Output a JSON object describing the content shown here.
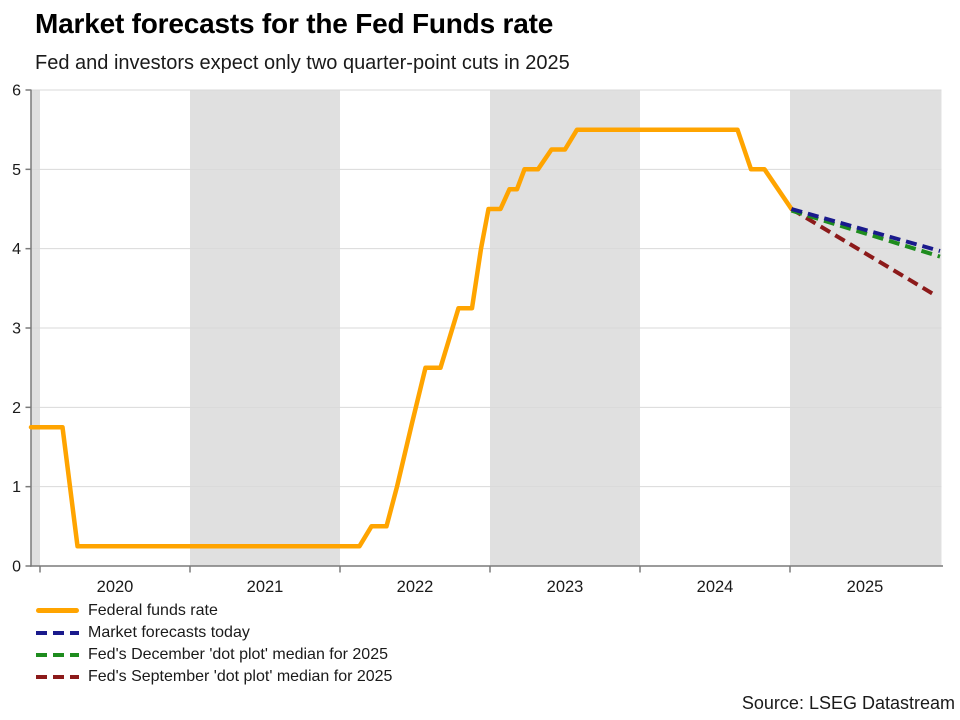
{
  "chart_data": {
    "type": "line",
    "title": "Market forecasts for the Fed Funds rate",
    "subtitle": "Fed and investors expect only two quarter-point cuts in 2025",
    "x_axis": {
      "ticks": [
        2020,
        2021,
        2022,
        2023,
        2024,
        2025
      ],
      "range": [
        2019.94,
        2026.01
      ]
    },
    "y_axis": {
      "ticks": [
        0,
        1,
        2,
        3,
        4,
        5,
        6
      ],
      "range": [
        0,
        6
      ]
    },
    "grid": true,
    "legend_position": "bottom-left",
    "shaded_year_bands": [
      [
        2019.94,
        2020
      ],
      [
        2021,
        2022
      ],
      [
        2023,
        2024
      ],
      [
        2025,
        2026.01
      ]
    ],
    "series": [
      {
        "name": "Federal funds rate",
        "color": "#FFA400",
        "style": "solid",
        "points": [
          [
            2019.94,
            1.75
          ],
          [
            2020.15,
            1.75
          ],
          [
            2020.25,
            0.25
          ],
          [
            2022.13,
            0.25
          ],
          [
            2022.21,
            0.5
          ],
          [
            2022.31,
            0.5
          ],
          [
            2022.38,
            1.0
          ],
          [
            2022.48,
            1.8
          ],
          [
            2022.57,
            2.5
          ],
          [
            2022.67,
            2.5
          ],
          [
            2022.79,
            3.25
          ],
          [
            2022.88,
            3.25
          ],
          [
            2022.94,
            4.0
          ],
          [
            2022.99,
            4.5
          ],
          [
            2023.07,
            4.5
          ],
          [
            2023.13,
            4.75
          ],
          [
            2023.18,
            4.75
          ],
          [
            2023.23,
            5.0
          ],
          [
            2023.32,
            5.0
          ],
          [
            2023.41,
            5.25
          ],
          [
            2023.5,
            5.25
          ],
          [
            2023.58,
            5.5
          ],
          [
            2024.65,
            5.5
          ],
          [
            2024.74,
            5.0
          ],
          [
            2024.83,
            5.0
          ],
          [
            2025.01,
            4.5
          ]
        ]
      },
      {
        "name": "Market forecasts today",
        "color": "#1A1A8C",
        "style": "dashed",
        "points": [
          [
            2025.01,
            4.5
          ],
          [
            2026.0,
            3.97
          ]
        ]
      },
      {
        "name": "Fed's December 'dot plot' median for 2025",
        "color": "#1E8C1E",
        "style": "dashed",
        "points": [
          [
            2025.01,
            4.48
          ],
          [
            2026.0,
            3.9
          ]
        ]
      },
      {
        "name": "Fed's September 'dot plot' median for 2025",
        "color": "#8C1A1A",
        "style": "dashed",
        "points": [
          [
            2025.01,
            4.5
          ],
          [
            2025.98,
            3.4
          ]
        ]
      }
    ]
  },
  "source_note": "Source: LSEG Datastream",
  "colors": {
    "band": "#E0E0E0",
    "grid": "#D9D9D9",
    "axis": "#7A7A7A",
    "text": "#1A1A1A"
  }
}
